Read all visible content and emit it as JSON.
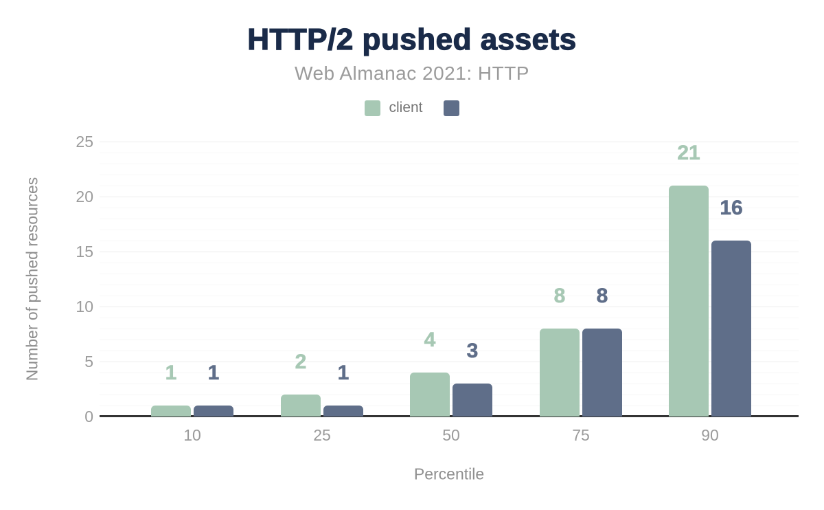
{
  "header": {
    "title": "HTTP/2 pushed assets",
    "subtitle": "Web Almanac 2021: HTTP"
  },
  "legend": {
    "items": [
      {
        "label": "client",
        "color": "#a7c8b4"
      },
      {
        "label": "",
        "color": "#5f6e89"
      }
    ]
  },
  "chart_data": {
    "type": "bar",
    "title": "HTTP/2 pushed assets",
    "subtitle": "Web Almanac 2021: HTTP",
    "categories": [
      "10",
      "25",
      "50",
      "75",
      "90"
    ],
    "series": [
      {
        "name": "client",
        "color": "#a7c8b4",
        "values": [
          1,
          2,
          4,
          8,
          21
        ]
      },
      {
        "name": "",
        "color": "#5f6e89",
        "values": [
          1,
          1,
          3,
          8,
          16
        ]
      }
    ],
    "xlabel": "Percentile",
    "ylabel": "Number of pushed resources",
    "ylim": [
      0,
      25
    ],
    "yticks": [
      0,
      5,
      10,
      15,
      20,
      25
    ],
    "grid": {
      "orientation": "horizontal",
      "minor_step": 1,
      "major_step": 5
    },
    "legend_position": "top",
    "bar_value_labels": true
  },
  "colors": {
    "title": "#1a2b49",
    "subtitle": "#9b9b9b",
    "tick_label": "#9b9b9b",
    "axis_title": "#8f8f8f",
    "axis_line": "#333333",
    "grid_minor": "#f7f7f7",
    "grid_major": "#ececec",
    "legend_text": "#757575"
  }
}
